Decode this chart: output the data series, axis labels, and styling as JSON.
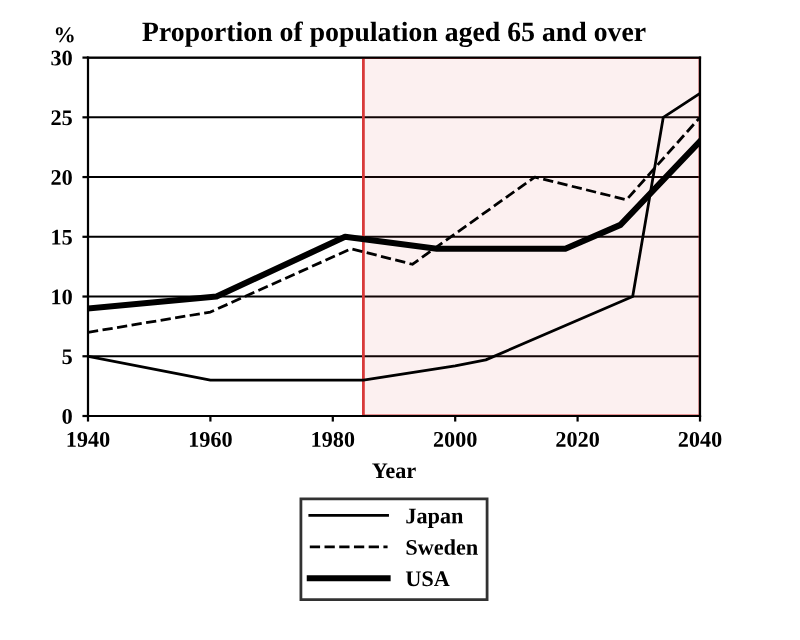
{
  "chart_data": {
    "type": "line",
    "title": "Proportion of population aged 65 and over",
    "xlabel": "Year",
    "ylabel": "%",
    "xlim": [
      1940,
      2040
    ],
    "xticks": [
      1940,
      1960,
      1980,
      2000,
      2020,
      2040
    ],
    "ylim": [
      0,
      30
    ],
    "yticks": [
      0,
      5,
      10,
      15,
      20,
      25,
      30
    ],
    "grid": "y",
    "legend": "bottom",
    "bands": [
      {
        "axis": "x",
        "from": 1985,
        "to": 2040,
        "color": "#d83a3a"
      }
    ],
    "series": [
      {
        "name": "Japan",
        "color": "#000000",
        "line_style": "solid",
        "x": [
          1940,
          1960,
          1985,
          2000,
          2005,
          2029,
          2034,
          2040
        ],
        "values": [
          5,
          3,
          3,
          4.2,
          4.7,
          10,
          25,
          27
        ]
      },
      {
        "name": "Sweden",
        "color": "#000000",
        "line_style": "dashed",
        "x": [
          1940,
          1960,
          1983,
          1993,
          2013,
          2028,
          2040
        ],
        "values": [
          7,
          8.7,
          14,
          12.7,
          20,
          18.1,
          25
        ]
      },
      {
        "name": "USA",
        "color": "#000000",
        "line_style": "solid",
        "x": [
          1940,
          1961,
          1982,
          1997,
          2018,
          2027,
          2040
        ],
        "values": [
          9,
          10,
          15,
          14,
          14,
          16,
          23
        ]
      }
    ]
  }
}
